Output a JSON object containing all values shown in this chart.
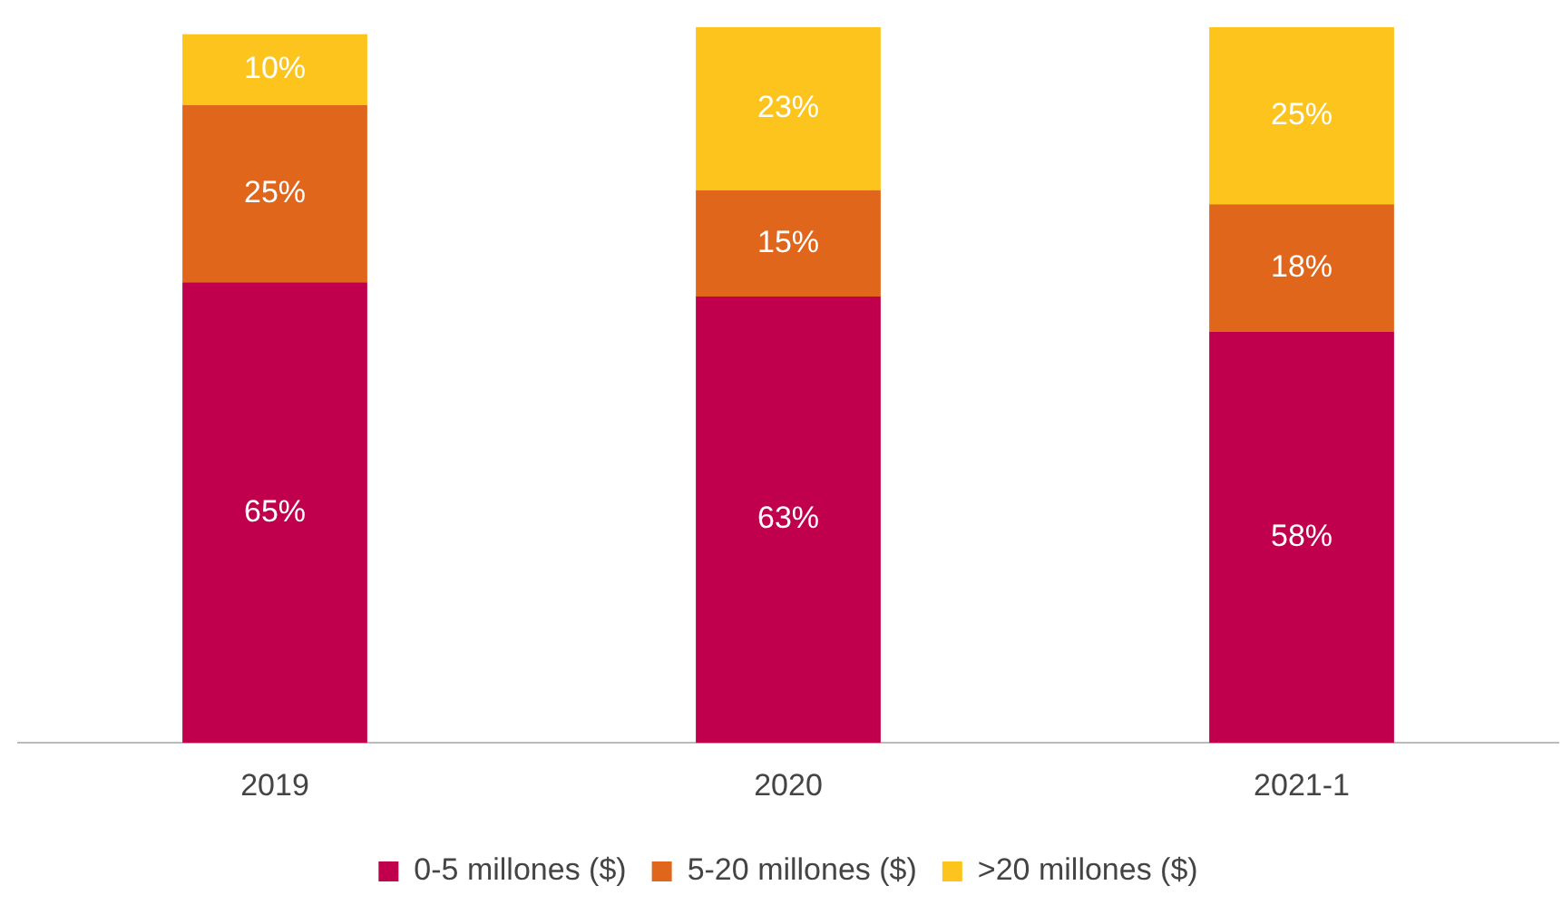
{
  "chart_data": {
    "type": "bar",
    "stacked": true,
    "categories": [
      "2019",
      "2020",
      "2021-1"
    ],
    "series": [
      {
        "name": "0-5 millones ($)",
        "color": "#c0004d",
        "values": [
          65,
          63,
          58
        ],
        "value_labels": [
          "65%",
          "63%",
          "58%"
        ]
      },
      {
        "name": "5-20 millones ($)",
        "color": "#e0661c",
        "values": [
          25,
          15,
          18
        ],
        "value_labels": [
          "25%",
          "15%",
          "18%"
        ]
      },
      {
        "name": ">20 millones ($)",
        "color": "#fcc41c",
        "values": [
          10,
          23,
          25
        ],
        "value_labels": [
          "10%",
          "23%",
          "25%"
        ]
      }
    ],
    "grid": false,
    "legend": "bottom"
  }
}
